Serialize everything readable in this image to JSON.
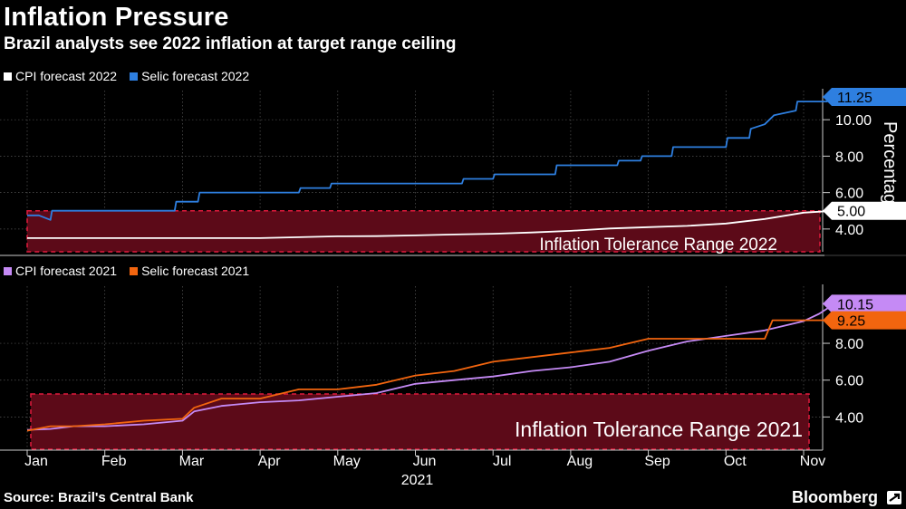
{
  "header": {
    "title": "Inflation Pressure",
    "subtitle": "Brazil analysts see 2022 inflation at target range ceiling"
  },
  "footer": {
    "source": "Source: Brazil's Central Bank",
    "brand": "Bloomberg"
  },
  "colors": {
    "cpi2022": "#ffffff",
    "selic2022": "#2e7fe0",
    "cpi2021": "#c58af5",
    "selic2021": "#f2650f",
    "band_fill": "#5c0a18",
    "band_edge": "#e01a3c",
    "grid": "#555555"
  },
  "chart_data": [
    {
      "type": "line",
      "panel": "top",
      "ylabel": "Percentage",
      "ylim": [
        2.75,
        11.6
      ],
      "yticks": [
        "4.00",
        "6.00",
        "8.00",
        "10.00"
      ],
      "tolerance_band": {
        "label": "Inflation Tolerance Range 2022",
        "range": [
          2.0,
          5.0
        ]
      },
      "legend": [
        "CPI forecast 2022",
        "Selic forecast 2022"
      ],
      "series": [
        {
          "name": "CPI forecast 2022",
          "color_key": "cpi2022",
          "end_label": "5.00",
          "points": [
            [
              0,
              3.5
            ],
            [
              0.5,
              3.5
            ],
            [
              1,
              3.5
            ],
            [
              1.5,
              3.5
            ],
            [
              2,
              3.5
            ],
            [
              2.5,
              3.5
            ],
            [
              3,
              3.5
            ],
            [
              3.5,
              3.55
            ],
            [
              4,
              3.6
            ],
            [
              4.5,
              3.61
            ],
            [
              5,
              3.65
            ],
            [
              5.5,
              3.7
            ],
            [
              6,
              3.74
            ],
            [
              6.5,
              3.81
            ],
            [
              7,
              3.9
            ],
            [
              7.5,
              4.03
            ],
            [
              8,
              4.1
            ],
            [
              8.5,
              4.17
            ],
            [
              9,
              4.3
            ],
            [
              9.5,
              4.55
            ],
            [
              10,
              4.9
            ],
            [
              10.4,
              5.0
            ]
          ]
        },
        {
          "name": "Selic forecast 2022",
          "color_key": "selic2022",
          "end_label": "11.25",
          "points": [
            [
              0,
              4.75
            ],
            [
              0.15,
              4.75
            ],
            [
              0.3,
              4.5
            ],
            [
              0.32,
              5.0
            ],
            [
              1,
              5.0
            ],
            [
              1.9,
              5.0
            ],
            [
              1.92,
              5.5
            ],
            [
              2.2,
              5.5
            ],
            [
              2.22,
              6.0
            ],
            [
              3.5,
              6.0
            ],
            [
              3.52,
              6.25
            ],
            [
              3.9,
              6.25
            ],
            [
              3.92,
              6.5
            ],
            [
              5.6,
              6.5
            ],
            [
              5.62,
              6.75
            ],
            [
              6,
              6.75
            ],
            [
              6.02,
              7.0
            ],
            [
              6.8,
              7.0
            ],
            [
              6.82,
              7.5
            ],
            [
              7.6,
              7.5
            ],
            [
              7.62,
              7.75
            ],
            [
              7.9,
              7.75
            ],
            [
              7.92,
              8.0
            ],
            [
              8.3,
              8.0
            ],
            [
              8.32,
              8.5
            ],
            [
              9,
              8.5
            ],
            [
              9.02,
              9.0
            ],
            [
              9.3,
              9.0
            ],
            [
              9.32,
              9.5
            ],
            [
              9.5,
              9.75
            ],
            [
              9.62,
              10.25
            ],
            [
              9.9,
              10.5
            ],
            [
              9.92,
              11.0
            ],
            [
              10.3,
              11.0
            ],
            [
              10.4,
              11.25
            ]
          ]
        }
      ]
    },
    {
      "type": "line",
      "panel": "bottom",
      "ylim": [
        2.2,
        11.1
      ],
      "yticks": [
        "4.00",
        "6.00",
        "8.00"
      ],
      "tolerance_band": {
        "label": "Inflation Tolerance Range 2021",
        "range": [
          2.25,
          5.25
        ]
      },
      "legend": [
        "CPI forecast 2021",
        "Selic forecast 2021"
      ],
      "x_axis": {
        "categories": [
          "Jan",
          "Feb",
          "Mar",
          "Apr",
          "May",
          "Jun",
          "Jul",
          "Aug",
          "Sep",
          "Oct",
          "Nov"
        ],
        "year_label": "2021"
      },
      "series": [
        {
          "name": "CPI forecast 2021",
          "color_key": "cpi2021",
          "end_label": "10.15",
          "points": [
            [
              0,
              3.3
            ],
            [
              0.3,
              3.35
            ],
            [
              0.6,
              3.5
            ],
            [
              1,
              3.5
            ],
            [
              1.5,
              3.6
            ],
            [
              2,
              3.8
            ],
            [
              2.15,
              4.3
            ],
            [
              2.5,
              4.6
            ],
            [
              3,
              4.8
            ],
            [
              3.5,
              4.9
            ],
            [
              4,
              5.1
            ],
            [
              4.5,
              5.3
            ],
            [
              5,
              5.8
            ],
            [
              5.5,
              6.0
            ],
            [
              6,
              6.2
            ],
            [
              6.5,
              6.5
            ],
            [
              7,
              6.7
            ],
            [
              7.5,
              7.0
            ],
            [
              8,
              7.6
            ],
            [
              8.5,
              8.1
            ],
            [
              9,
              8.4
            ],
            [
              9.5,
              8.7
            ],
            [
              10,
              9.2
            ],
            [
              10.2,
              9.6
            ],
            [
              10.4,
              10.15
            ]
          ]
        },
        {
          "name": "Selic forecast 2021",
          "color_key": "selic2021",
          "end_label": "9.25",
          "points": [
            [
              0,
              3.25
            ],
            [
              0.3,
              3.5
            ],
            [
              0.6,
              3.5
            ],
            [
              1,
              3.6
            ],
            [
              1.5,
              3.8
            ],
            [
              2,
              3.9
            ],
            [
              2.15,
              4.5
            ],
            [
              2.5,
              5.0
            ],
            [
              3,
              5.0
            ],
            [
              3.5,
              5.5
            ],
            [
              4,
              5.5
            ],
            [
              4.5,
              5.75
            ],
            [
              5,
              6.25
            ],
            [
              5.5,
              6.5
            ],
            [
              6,
              7.0
            ],
            [
              6.5,
              7.25
            ],
            [
              7,
              7.5
            ],
            [
              7.5,
              7.75
            ],
            [
              8,
              8.25
            ],
            [
              8.5,
              8.25
            ],
            [
              9,
              8.25
            ],
            [
              9.5,
              8.25
            ],
            [
              9.6,
              9.25
            ],
            [
              10.5,
              9.25
            ]
          ]
        }
      ]
    }
  ]
}
